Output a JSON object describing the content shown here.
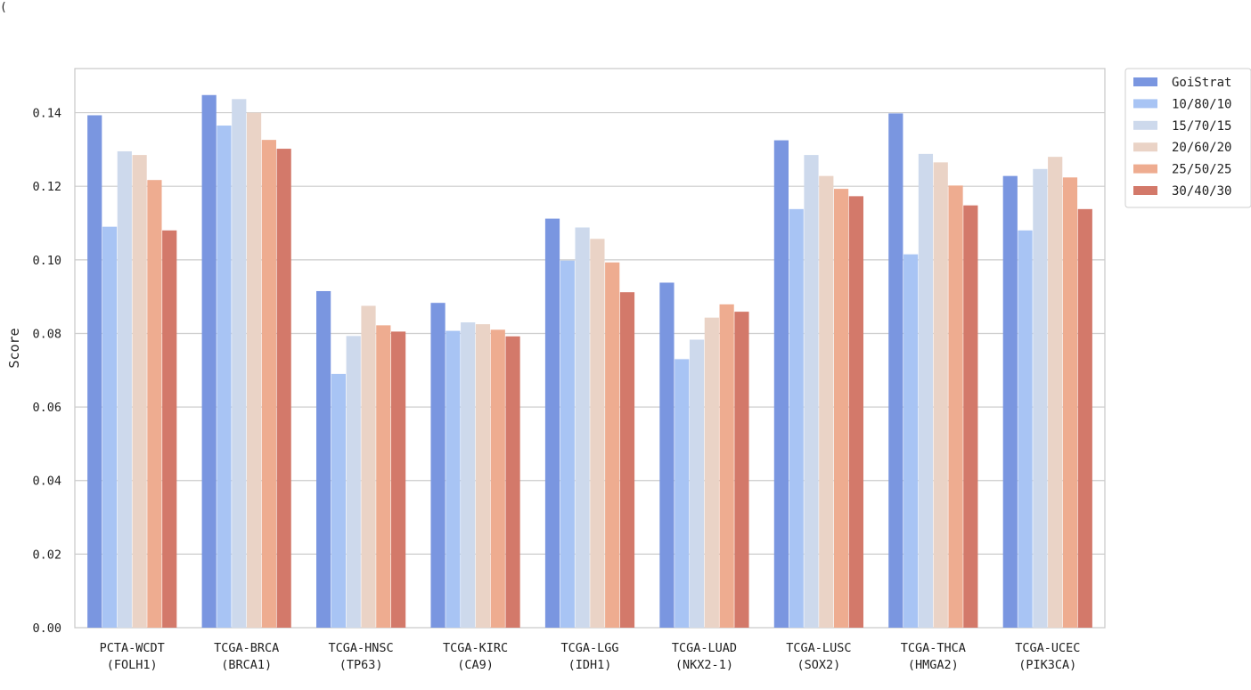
{
  "stray_text": "(",
  "chart_data": {
    "type": "bar",
    "title": "",
    "xlabel": "",
    "ylabel": "Score",
    "ylim": [
      0,
      0.152
    ],
    "yticks": [
      "0.00",
      "0.02",
      "0.04",
      "0.06",
      "0.08",
      "0.10",
      "0.12",
      "0.14"
    ],
    "grid": true,
    "legend_position": "outside-top-right",
    "categories": [
      [
        "PCTA-WCDT",
        "(FOLH1)"
      ],
      [
        "TCGA-BRCA",
        "(BRCA1)"
      ],
      [
        "TCGA-HNSC",
        "(TP63)"
      ],
      [
        "TCGA-KIRC",
        "(CA9)"
      ],
      [
        "TCGA-LGG",
        "(IDH1)"
      ],
      [
        "TCGA-LUAD",
        "(NKX2-1)"
      ],
      [
        "TCGA-LUSC",
        "(SOX2)"
      ],
      [
        "TCGA-THCA",
        "(HMGA2)"
      ],
      [
        "TCGA-UCEC",
        "(PIK3CA)"
      ]
    ],
    "series": [
      {
        "name": "GoiStrat",
        "color": "#7a96e0",
        "values": [
          0.1393,
          0.1448,
          0.0915,
          0.0883,
          0.1112,
          0.0938,
          0.1325,
          0.1398,
          0.1228
        ]
      },
      {
        "name": "10/80/10",
        "color": "#a8c4f4",
        "values": [
          0.109,
          0.1365,
          0.069,
          0.0807,
          0.0998,
          0.073,
          0.1138,
          0.1015,
          0.108
        ]
      },
      {
        "name": "15/70/15",
        "color": "#cdd9ec",
        "values": [
          0.1295,
          0.1437,
          0.0793,
          0.083,
          0.1088,
          0.0783,
          0.1285,
          0.1288,
          0.1247
        ]
      },
      {
        "name": "20/60/20",
        "color": "#ead3c6",
        "values": [
          0.1285,
          0.14,
          0.0875,
          0.0825,
          0.1057,
          0.0843,
          0.1228,
          0.1265,
          0.128
        ]
      },
      {
        "name": "25/50/25",
        "color": "#eeac90",
        "values": [
          0.1217,
          0.1326,
          0.0822,
          0.081,
          0.0993,
          0.0879,
          0.1193,
          0.1202,
          0.1224
        ]
      },
      {
        "name": "30/40/30",
        "color": "#d3796a",
        "values": [
          0.108,
          0.1302,
          0.0805,
          0.0792,
          0.0912,
          0.0859,
          0.1173,
          0.1148,
          0.1138
        ]
      }
    ]
  }
}
